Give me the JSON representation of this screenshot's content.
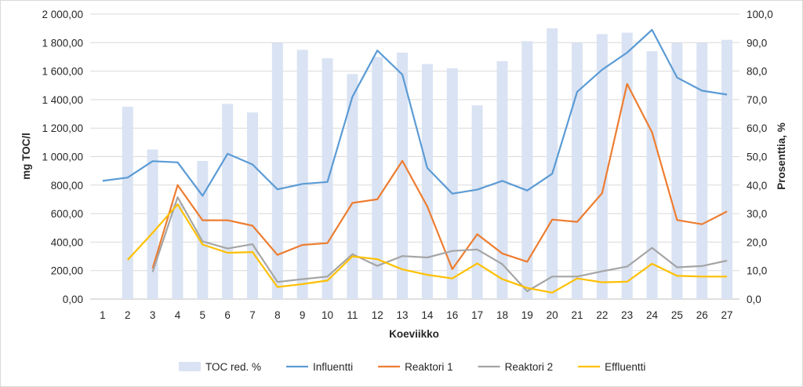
{
  "chart_data": {
    "type": "bar+line",
    "title": "",
    "xlabel": "Koeviikko",
    "ylabel_left": "mg TOC/l",
    "ylabel_right": "Prosenttia, %",
    "categories": [
      "1",
      "2",
      "3",
      "4",
      "5",
      "6",
      "7",
      "8",
      "9",
      "10",
      "11",
      "12",
      "13",
      "14",
      "16",
      "17",
      "18",
      "19",
      "20",
      "21",
      "22",
      "23",
      "24",
      "25",
      "26",
      "27"
    ],
    "ylim_left": [
      0,
      2000
    ],
    "ylim_right": [
      0,
      100
    ],
    "left_ticks": [
      "0,00",
      "200,00",
      "400,00",
      "600,00",
      "800,00",
      "1 000,00",
      "1 200,00",
      "1 400,00",
      "1 600,00",
      "1 800,00",
      "2 000,00"
    ],
    "right_ticks": [
      "0,0",
      "10,0",
      "20,0",
      "30,0",
      "40,0",
      "50,0",
      "60,0",
      "70,0",
      "80,0",
      "90,0",
      "100,0"
    ],
    "grid": true,
    "legend_position": "bottom",
    "bars": {
      "name": "TOC red. %",
      "axis": "right",
      "color": "#dae3f3",
      "values": [
        null,
        67.5,
        52.5,
        33.5,
        48.5,
        68.5,
        65.5,
        90,
        87.5,
        84.5,
        79,
        85,
        86.5,
        82.5,
        81,
        68,
        83.5,
        90.5,
        95,
        90,
        93,
        93.5,
        87,
        90,
        90,
        91
      ]
    },
    "series": [
      {
        "name": "Influentti",
        "color": "#5b9bd5",
        "values": [
          830,
          853,
          968,
          960,
          725,
          1020,
          945,
          770,
          808,
          822,
          1420,
          1745,
          1575,
          920,
          740,
          768,
          830,
          762,
          880,
          1455,
          1610,
          1730,
          1890,
          1555,
          1463,
          1435
        ]
      },
      {
        "name": "Reaktori 1",
        "color": "#ed7d31",
        "values": [
          null,
          null,
          215,
          800,
          553,
          553,
          515,
          310,
          380,
          393,
          675,
          700,
          970,
          650,
          210,
          455,
          320,
          262,
          558,
          542,
          743,
          1510,
          1170,
          555,
          525,
          615
        ]
      },
      {
        "name": "Reaktori 2",
        "color": "#a5a5a5",
        "values": [
          null,
          null,
          190,
          715,
          405,
          355,
          385,
          120,
          140,
          158,
          315,
          233,
          302,
          292,
          338,
          348,
          245,
          55,
          158,
          158,
          195,
          228,
          360,
          223,
          232,
          270
        ]
      },
      {
        "name": "Effluentti",
        "color": "#ffc000",
        "values": [
          null,
          275,
          465,
          665,
          383,
          325,
          330,
          85,
          105,
          130,
          300,
          280,
          208,
          170,
          145,
          250,
          140,
          78,
          45,
          145,
          118,
          122,
          248,
          163,
          158,
          158
        ]
      }
    ]
  }
}
